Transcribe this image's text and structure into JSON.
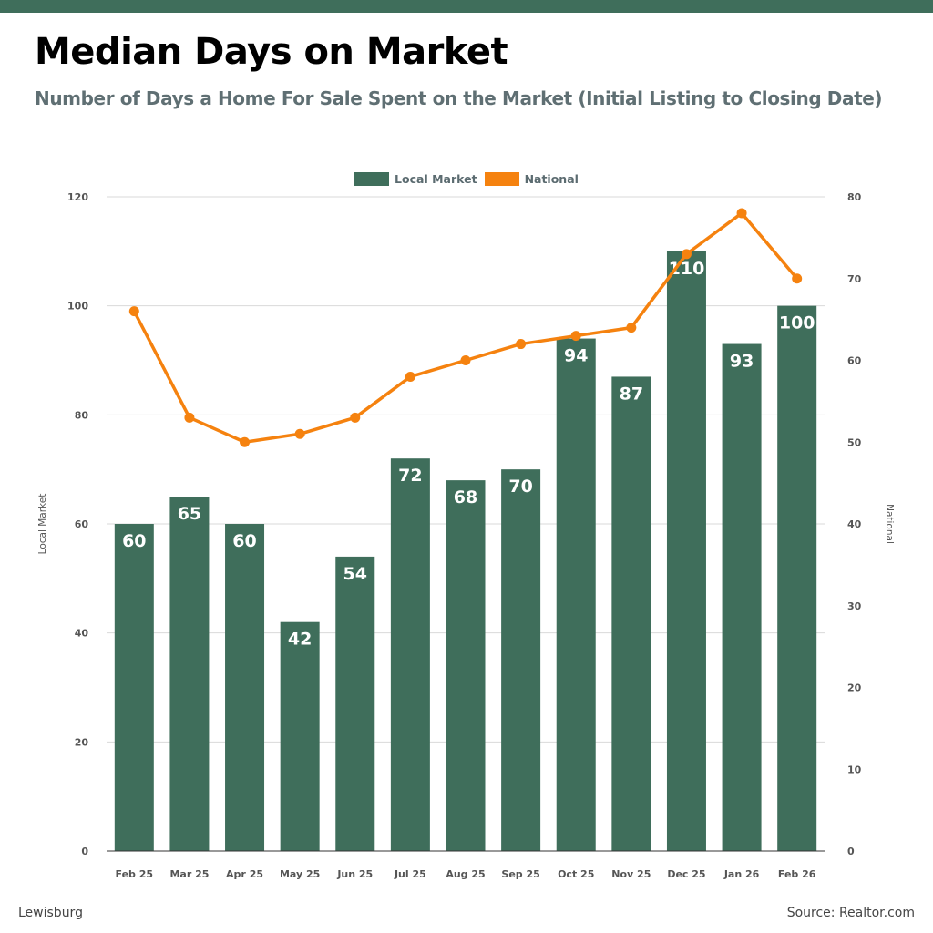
{
  "header": {
    "title": "Median Days on Market",
    "subtitle": "Number of Days a Home For Sale Spent on the Market (Initial Listing to Closing Date)"
  },
  "footer": {
    "location": "Lewisburg",
    "source": "Source: Realtor.com"
  },
  "colors": {
    "bar": "#3f6e5b",
    "line": "#f5820f",
    "grid": "#d9d9d9",
    "axis_text": "#555555",
    "bar_label": "#ffffff"
  },
  "chart_data": {
    "type": "bar",
    "categories": [
      "Feb 25",
      "Mar 25",
      "Apr 25",
      "May 25",
      "Jun 25",
      "Jul 25",
      "Aug 25",
      "Sep 25",
      "Oct 25",
      "Nov 25",
      "Dec 25",
      "Jan 26",
      "Feb 26"
    ],
    "series": [
      {
        "name": "Local Market",
        "type": "bar",
        "axis": "left",
        "values": [
          60,
          65,
          60,
          42,
          54,
          72,
          68,
          70,
          94,
          87,
          110,
          93,
          100
        ]
      },
      {
        "name": "National",
        "type": "line",
        "axis": "right",
        "values": [
          66,
          53,
          50,
          51,
          53,
          58,
          60,
          62,
          63,
          64,
          73,
          78,
          70
        ]
      }
    ],
    "ylabel": "Local Market",
    "y2label": "National",
    "ylim": [
      0,
      120
    ],
    "y2lim": [
      0,
      80
    ],
    "yticks": [
      0,
      20,
      40,
      60,
      80,
      100,
      120
    ],
    "y2ticks": [
      0,
      10,
      20,
      30,
      40,
      50,
      60,
      70,
      80
    ],
    "grid": true,
    "legend": "top-center"
  }
}
